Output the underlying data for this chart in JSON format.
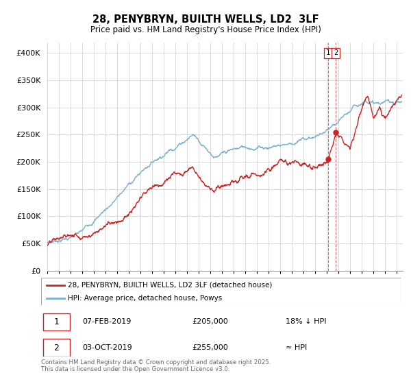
{
  "title": "28, PENYBRYN, BUILTH WELLS, LD2  3LF",
  "subtitle": "Price paid vs. HM Land Registry's House Price Index (HPI)",
  "ylim": [
    0,
    420000
  ],
  "xlim_start": 1995.0,
  "xlim_end": 2025.5,
  "hpi_color": "#7bafd4",
  "price_color": "#cc2222",
  "dashed_line_color": "#cc2222",
  "transaction1_x": 2019.09,
  "transaction2_x": 2019.75,
  "transaction1_price": 205000,
  "transaction2_price": 255000,
  "transaction1_date": "07-FEB-2019",
  "transaction2_date": "03-OCT-2019",
  "transaction1_label": "18% ↓ HPI",
  "transaction2_label": "≈ HPI",
  "legend_label_red": "28, PENYBRYN, BUILTH WELLS, LD2 3LF (detached house)",
  "legend_label_blue": "HPI: Average price, detached house, Powys",
  "footnote": "Contains HM Land Registry data © Crown copyright and database right 2025.\nThis data is licensed under the Open Government Licence v3.0.",
  "background_color": "#ffffff",
  "grid_color": "#cccccc"
}
